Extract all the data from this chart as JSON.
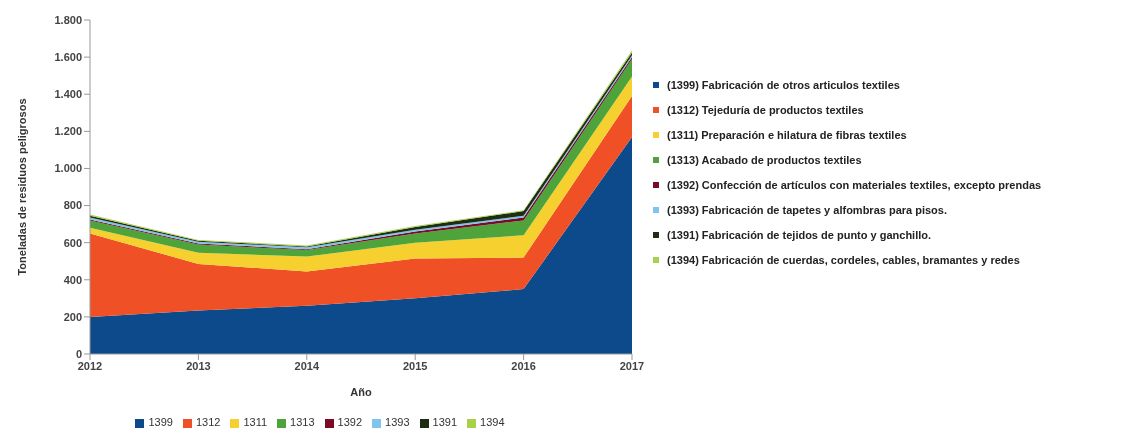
{
  "chart_data": {
    "type": "area",
    "stacked": true,
    "xlabel": "Año",
    "ylabel": "Toneladas de residuos peligrosos",
    "x": [
      2012,
      2013,
      2014,
      2015,
      2016,
      2017
    ],
    "xlim": [
      2012,
      2017
    ],
    "xticks": [
      2012,
      2013,
      2014,
      2015,
      2016,
      2017
    ],
    "ylim": [
      0,
      1800
    ],
    "yticks": [
      0,
      200,
      400,
      600,
      {
        "value": 800,
        "label": "800"
      },
      {
        "value": 1000,
        "label": "1.000"
      },
      {
        "value": 1200,
        "label": "1.200"
      },
      {
        "value": 1400,
        "label": "1.400"
      },
      {
        "value": 1600,
        "label": "1.600"
      },
      {
        "value": 1800,
        "label": "1.800"
      }
    ],
    "grid": false,
    "legend": "bottom",
    "series": [
      {
        "name": "1399",
        "color": "#0d4a8c",
        "values": [
          200,
          235,
          260,
          300,
          350,
          1170
        ]
      },
      {
        "name": "1312",
        "color": "#ef5026",
        "values": [
          450,
          250,
          185,
          215,
          170,
          220
        ]
      },
      {
        "name": "1311",
        "color": "#f5d02e",
        "values": [
          30,
          60,
          80,
          85,
          120,
          105
        ]
      },
      {
        "name": "1313",
        "color": "#4ea33a",
        "values": [
          40,
          45,
          35,
          50,
          80,
          95
        ]
      },
      {
        "name": "1392",
        "color": "#7b0a24",
        "values": [
          5,
          5,
          5,
          10,
          15,
          10
        ]
      },
      {
        "name": "1393",
        "color": "#7fc4ec",
        "values": [
          10,
          10,
          10,
          10,
          10,
          10
        ]
      },
      {
        "name": "1391",
        "color": "#1e2e14",
        "values": [
          10,
          5,
          5,
          15,
          25,
          15
        ]
      },
      {
        "name": "1394",
        "color": "#a8d04a",
        "values": [
          7,
          5,
          5,
          5,
          5,
          10
        ]
      }
    ],
    "annotations": [
      "(1399) Fabricación de otros articulos textiles",
      "(1312) Tejeduría de productos textiles",
      "(1311) Preparación e hilatura de fibras textiles",
      "(1313) Acabado de productos textiles",
      "(1392) Confección de artículos con materiales textiles, excepto prendas",
      "(1393) Fabricación de tapetes y alfombras para pisos.",
      "(1391) Fabricación de tejidos de punto y ganchillo.",
      "(1394) Fabricación de cuerdas, cordeles, cables, bramantes y redes"
    ]
  }
}
